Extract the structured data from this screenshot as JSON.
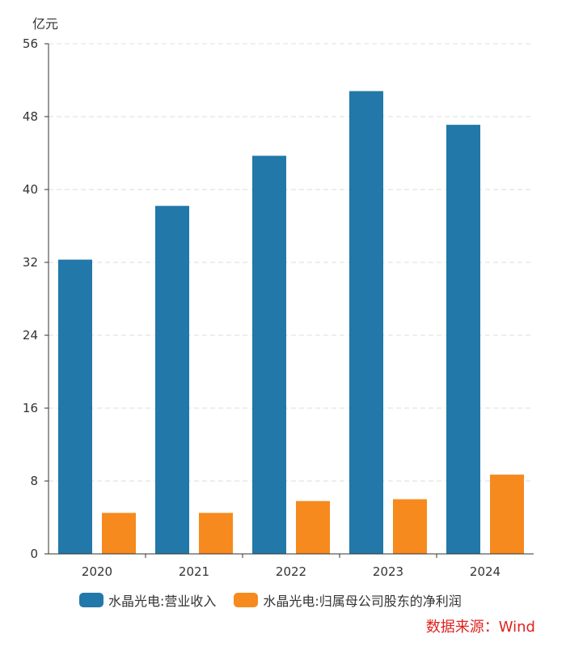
{
  "chart_data": {
    "type": "bar",
    "unit": "亿元",
    "categories": [
      "2020",
      "2021",
      "2022",
      "2023",
      "2024"
    ],
    "series": [
      {
        "name": "水晶光电:营业收入",
        "color": "#2278a8",
        "values": [
          32.3,
          38.2,
          43.7,
          50.8,
          47.1
        ]
      },
      {
        "name": "水晶光电:归属母公司股东的净利润",
        "color": "#f68a1e",
        "values": [
          4.5,
          4.5,
          5.8,
          6.0,
          8.7
        ]
      }
    ],
    "y_ticks": [
      0,
      8,
      16,
      24,
      32,
      40,
      48,
      56
    ],
    "ylim": [
      0,
      56
    ],
    "grid": true,
    "legend_position": "bottom"
  },
  "source": "数据来源：Wind"
}
